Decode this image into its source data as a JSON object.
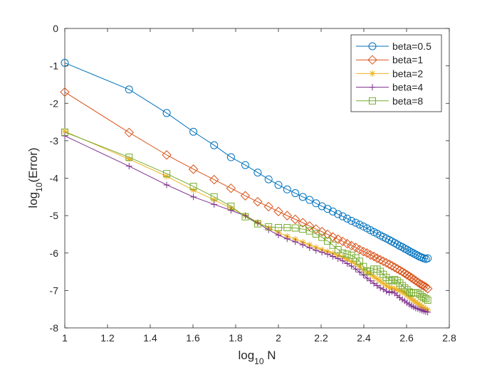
{
  "chart_data": {
    "type": "line",
    "title": "",
    "xlabel": {
      "prefix": "log",
      "sub": "10",
      "suffix": " N"
    },
    "ylabel": {
      "prefix": "log",
      "sub": "10",
      "suffix": "(Error)"
    },
    "xlim": [
      1,
      2.8
    ],
    "ylim": [
      -8,
      0
    ],
    "xticks": [
      1,
      1.2,
      1.4,
      1.6,
      1.8,
      2,
      2.2,
      2.4,
      2.6,
      2.8
    ],
    "xtick_labels": [
      "1",
      "1.2",
      "1.4",
      "1.6",
      "1.8",
      "2",
      "2.2",
      "2.4",
      "2.6",
      "2.8"
    ],
    "yticks": [
      0,
      -1,
      -2,
      -3,
      -4,
      -5,
      -6,
      -7,
      -8
    ],
    "ytick_labels": [
      "0",
      "-1",
      "-2",
      "-3",
      "-4",
      "-5",
      "-6",
      "-7",
      "-8"
    ],
    "grid": false,
    "legend_position": "top-right",
    "series": [
      {
        "name": "beta=0.5",
        "color": "#0072BD",
        "marker": "circle",
        "points": [
          [
            1,
            -0.92
          ],
          [
            1.301,
            -1.63
          ],
          [
            1.477,
            -2.26
          ],
          [
            1.602,
            -2.76
          ],
          [
            1.699,
            -3.12
          ],
          [
            1.778,
            -3.44
          ],
          [
            1.845,
            -3.65
          ],
          [
            1.903,
            -3.85
          ],
          [
            1.954,
            -4.03
          ],
          [
            2,
            -4.18
          ],
          [
            2.041,
            -4.3
          ],
          [
            2.079,
            -4.4
          ],
          [
            2.114,
            -4.5
          ],
          [
            2.146,
            -4.58
          ],
          [
            2.176,
            -4.67
          ],
          [
            2.204,
            -4.75
          ],
          [
            2.23,
            -4.82
          ],
          [
            2.255,
            -4.89
          ],
          [
            2.279,
            -4.96
          ],
          [
            2.301,
            -5.02
          ],
          [
            2.322,
            -5.08
          ],
          [
            2.342,
            -5.14
          ],
          [
            2.362,
            -5.19
          ],
          [
            2.38,
            -5.24
          ],
          [
            2.398,
            -5.29
          ],
          [
            2.415,
            -5.34
          ],
          [
            2.431,
            -5.39
          ],
          [
            2.447,
            -5.44
          ],
          [
            2.462,
            -5.48
          ],
          [
            2.477,
            -5.53
          ],
          [
            2.491,
            -5.57
          ],
          [
            2.505,
            -5.61
          ],
          [
            2.519,
            -5.65
          ],
          [
            2.531,
            -5.69
          ],
          [
            2.544,
            -5.73
          ],
          [
            2.556,
            -5.77
          ],
          [
            2.568,
            -5.81
          ],
          [
            2.58,
            -5.84
          ],
          [
            2.591,
            -5.88
          ],
          [
            2.602,
            -5.91
          ],
          [
            2.613,
            -5.95
          ],
          [
            2.623,
            -5.98
          ],
          [
            2.633,
            -6.01
          ],
          [
            2.643,
            -6.04
          ],
          [
            2.653,
            -6.07
          ],
          [
            2.663,
            -6.1
          ],
          [
            2.672,
            -6.12
          ],
          [
            2.681,
            -6.14
          ],
          [
            2.69,
            -6.16
          ],
          [
            2.699,
            -6.14
          ]
        ]
      },
      {
        "name": "beta=1",
        "color": "#D95319",
        "marker": "diamond",
        "points": [
          [
            1,
            -1.7
          ],
          [
            1.301,
            -2.78
          ],
          [
            1.477,
            -3.38
          ],
          [
            1.602,
            -3.76
          ],
          [
            1.699,
            -4.04
          ],
          [
            1.778,
            -4.27
          ],
          [
            1.845,
            -4.47
          ],
          [
            1.903,
            -4.63
          ],
          [
            1.954,
            -4.76
          ],
          [
            2,
            -4.89
          ],
          [
            2.041,
            -5
          ],
          [
            2.079,
            -5.1
          ],
          [
            2.114,
            -5.19
          ],
          [
            2.146,
            -5.28
          ],
          [
            2.176,
            -5.36
          ],
          [
            2.204,
            -5.43
          ],
          [
            2.23,
            -5.5
          ],
          [
            2.255,
            -5.57
          ],
          [
            2.279,
            -5.63
          ],
          [
            2.301,
            -5.69
          ],
          [
            2.322,
            -5.75
          ],
          [
            2.342,
            -5.8
          ],
          [
            2.362,
            -5.85
          ],
          [
            2.38,
            -5.91
          ],
          [
            2.398,
            -5.96
          ],
          [
            2.415,
            -6
          ],
          [
            2.431,
            -6.05
          ],
          [
            2.447,
            -6.09
          ],
          [
            2.462,
            -6.14
          ],
          [
            2.477,
            -6.18
          ],
          [
            2.491,
            -6.22
          ],
          [
            2.505,
            -6.26
          ],
          [
            2.519,
            -6.3
          ],
          [
            2.531,
            -6.34
          ],
          [
            2.544,
            -6.38
          ],
          [
            2.556,
            -6.42
          ],
          [
            2.568,
            -6.46
          ],
          [
            2.58,
            -6.5
          ],
          [
            2.591,
            -6.54
          ],
          [
            2.602,
            -6.58
          ],
          [
            2.613,
            -6.62
          ],
          [
            2.623,
            -6.66
          ],
          [
            2.633,
            -6.7
          ],
          [
            2.643,
            -6.74
          ],
          [
            2.653,
            -6.78
          ],
          [
            2.663,
            -6.82
          ],
          [
            2.672,
            -6.85
          ],
          [
            2.681,
            -6.88
          ],
          [
            2.69,
            -6.91
          ],
          [
            2.699,
            -6.95
          ]
        ]
      },
      {
        "name": "beta=2",
        "color": "#EDB120",
        "marker": "star",
        "points": [
          [
            1,
            -2.75
          ],
          [
            1.301,
            -3.49
          ],
          [
            1.477,
            -3.95
          ],
          [
            1.602,
            -4.32
          ],
          [
            1.699,
            -4.58
          ],
          [
            1.778,
            -4.8
          ],
          [
            1.845,
            -5
          ],
          [
            1.903,
            -5.18
          ],
          [
            1.954,
            -5.33
          ],
          [
            2,
            -5.45
          ],
          [
            2.041,
            -5.55
          ],
          [
            2.079,
            -5.63
          ],
          [
            2.114,
            -5.71
          ],
          [
            2.146,
            -5.78
          ],
          [
            2.176,
            -5.85
          ],
          [
            2.204,
            -5.91
          ],
          [
            2.23,
            -5.96
          ],
          [
            2.255,
            -6.01
          ],
          [
            2.279,
            -6.06
          ],
          [
            2.301,
            -6.11
          ],
          [
            2.322,
            -6.17
          ],
          [
            2.342,
            -6.23
          ],
          [
            2.362,
            -6.29
          ],
          [
            2.38,
            -6.36
          ],
          [
            2.398,
            -6.44
          ],
          [
            2.415,
            -6.52
          ],
          [
            2.431,
            -6.56
          ],
          [
            2.447,
            -6.63
          ],
          [
            2.462,
            -6.69
          ],
          [
            2.477,
            -6.75
          ],
          [
            2.491,
            -6.81
          ],
          [
            2.505,
            -6.87
          ],
          [
            2.519,
            -6.92
          ],
          [
            2.531,
            -6.93
          ],
          [
            2.544,
            -6.96
          ],
          [
            2.556,
            -6.98
          ],
          [
            2.568,
            -7.01
          ],
          [
            2.58,
            -7.04
          ],
          [
            2.591,
            -7.07
          ],
          [
            2.602,
            -7.12
          ],
          [
            2.613,
            -7.17
          ],
          [
            2.623,
            -7.22
          ],
          [
            2.633,
            -7.27
          ],
          [
            2.643,
            -7.31
          ],
          [
            2.653,
            -7.35
          ],
          [
            2.663,
            -7.39
          ],
          [
            2.672,
            -7.43
          ],
          [
            2.681,
            -7.46
          ],
          [
            2.69,
            -7.49
          ],
          [
            2.699,
            -7.52
          ]
        ]
      },
      {
        "name": "beta=4",
        "color": "#7E2F8E",
        "marker": "plus",
        "points": [
          [
            1,
            -2.87
          ],
          [
            1.301,
            -3.68
          ],
          [
            1.477,
            -4.18
          ],
          [
            1.602,
            -4.5
          ],
          [
            1.699,
            -4.7
          ],
          [
            1.778,
            -4.86
          ],
          [
            1.845,
            -5
          ],
          [
            1.903,
            -5.2
          ],
          [
            1.954,
            -5.38
          ],
          [
            2,
            -5.52
          ],
          [
            2.041,
            -5.62
          ],
          [
            2.079,
            -5.7
          ],
          [
            2.114,
            -5.78
          ],
          [
            2.146,
            -5.86
          ],
          [
            2.176,
            -5.93
          ],
          [
            2.204,
            -5.98
          ],
          [
            2.23,
            -6.03
          ],
          [
            2.255,
            -6.09
          ],
          [
            2.279,
            -6.15
          ],
          [
            2.301,
            -6.21
          ],
          [
            2.322,
            -6.28
          ],
          [
            2.342,
            -6.35
          ],
          [
            2.362,
            -6.43
          ],
          [
            2.38,
            -6.51
          ],
          [
            2.398,
            -6.59
          ],
          [
            2.415,
            -6.67
          ],
          [
            2.431,
            -6.74
          ],
          [
            2.447,
            -6.81
          ],
          [
            2.462,
            -6.87
          ],
          [
            2.477,
            -6.93
          ],
          [
            2.491,
            -6.97
          ],
          [
            2.505,
            -7.02
          ],
          [
            2.519,
            -7.06
          ],
          [
            2.531,
            -7.03
          ],
          [
            2.544,
            -7.07
          ],
          [
            2.556,
            -7.13
          ],
          [
            2.568,
            -7.19
          ],
          [
            2.58,
            -7.24
          ],
          [
            2.591,
            -7.28
          ],
          [
            2.602,
            -7.33
          ],
          [
            2.613,
            -7.37
          ],
          [
            2.623,
            -7.41
          ],
          [
            2.633,
            -7.44
          ],
          [
            2.643,
            -7.47
          ],
          [
            2.653,
            -7.49
          ],
          [
            2.663,
            -7.51
          ],
          [
            2.672,
            -7.53
          ],
          [
            2.681,
            -7.55
          ],
          [
            2.69,
            -7.57
          ],
          [
            2.699,
            -7.58
          ]
        ]
      },
      {
        "name": "beta=8",
        "color": "#77AC30",
        "marker": "square",
        "points": [
          [
            1,
            -2.77
          ],
          [
            1.301,
            -3.44
          ],
          [
            1.477,
            -3.88
          ],
          [
            1.602,
            -4.22
          ],
          [
            1.699,
            -4.5
          ],
          [
            1.778,
            -4.75
          ],
          [
            1.845,
            -5.03
          ],
          [
            1.903,
            -5.22
          ],
          [
            1.954,
            -5.3
          ],
          [
            2,
            -5.32
          ],
          [
            2.041,
            -5.32
          ],
          [
            2.079,
            -5.33
          ],
          [
            2.114,
            -5.36
          ],
          [
            2.146,
            -5.41
          ],
          [
            2.176,
            -5.49
          ],
          [
            2.204,
            -5.58
          ],
          [
            2.23,
            -5.68
          ],
          [
            2.255,
            -5.79
          ],
          [
            2.279,
            -5.91
          ],
          [
            2.301,
            -6
          ],
          [
            2.322,
            -6.03
          ],
          [
            2.342,
            -6.06
          ],
          [
            2.362,
            -6.13
          ],
          [
            2.38,
            -6.22
          ],
          [
            2.398,
            -6.36
          ],
          [
            2.415,
            -6.48
          ],
          [
            2.431,
            -6.49
          ],
          [
            2.447,
            -6.43
          ],
          [
            2.462,
            -6.43
          ],
          [
            2.477,
            -6.49
          ],
          [
            2.491,
            -6.57
          ],
          [
            2.505,
            -6.65
          ],
          [
            2.519,
            -6.72
          ],
          [
            2.531,
            -6.74
          ],
          [
            2.544,
            -6.71
          ],
          [
            2.556,
            -6.74
          ],
          [
            2.568,
            -6.8
          ],
          [
            2.58,
            -6.87
          ],
          [
            2.591,
            -6.93
          ],
          [
            2.602,
            -6.98
          ],
          [
            2.613,
            -7.04
          ],
          [
            2.623,
            -7.07
          ],
          [
            2.633,
            -7.06
          ],
          [
            2.643,
            -7.06
          ],
          [
            2.653,
            -7.07
          ],
          [
            2.663,
            -7.11
          ],
          [
            2.672,
            -7.16
          ],
          [
            2.681,
            -7.19
          ],
          [
            2.69,
            -7.22
          ],
          [
            2.699,
            -7.26
          ]
        ]
      }
    ]
  }
}
